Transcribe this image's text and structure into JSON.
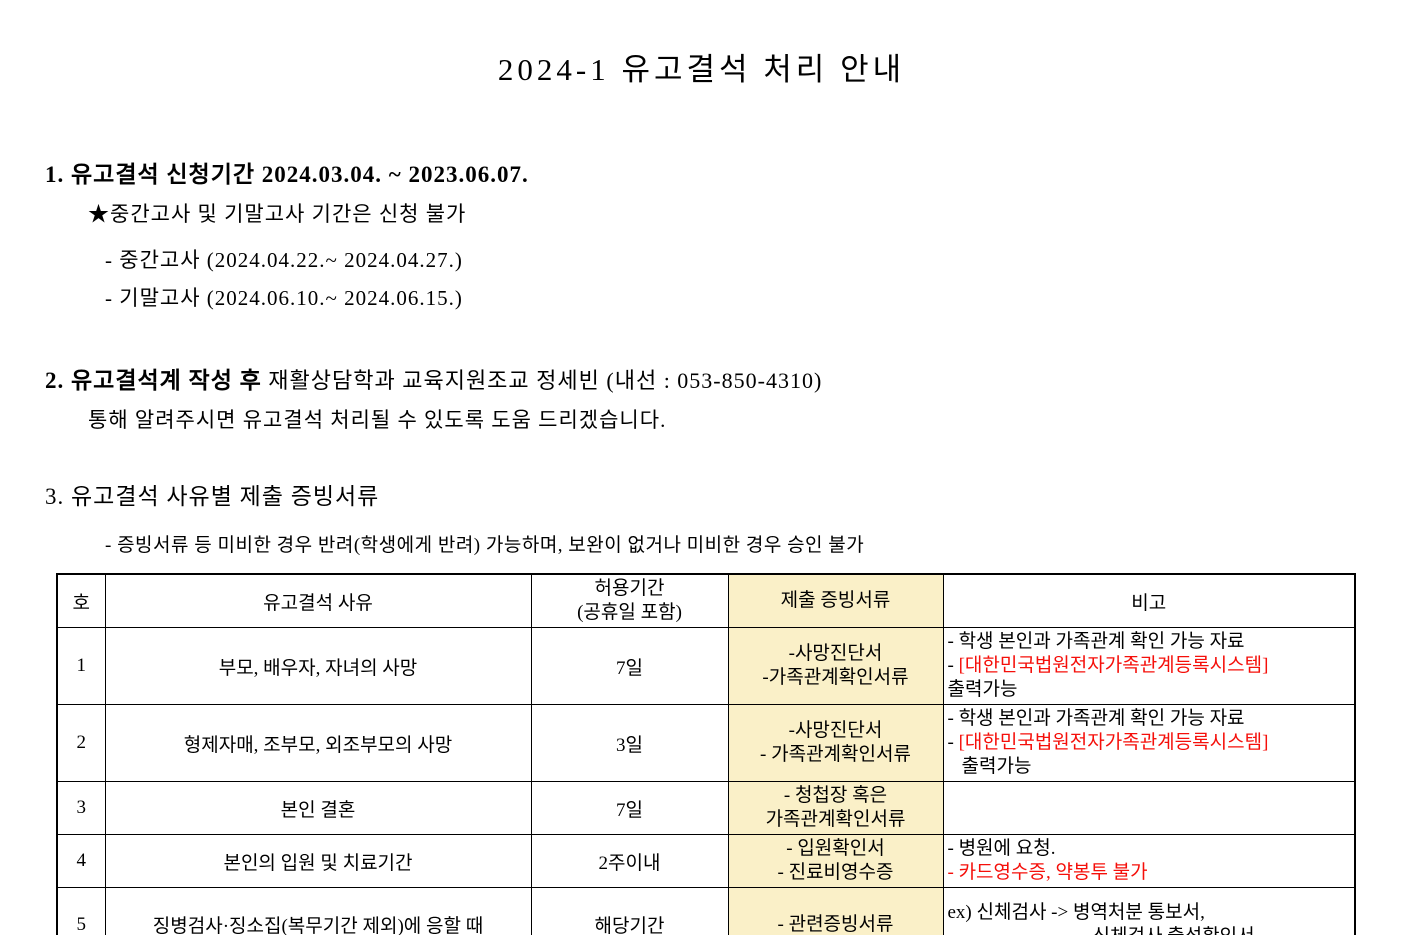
{
  "title": "2024-1 유고결석 처리 안내",
  "colors": {
    "highlight": "#faf0c8",
    "red": "#f50f0a",
    "text": "#000000"
  },
  "section1": {
    "heading": "1. 유고결석 신청기간 2024.03.04. ~ 2023.06.07.",
    "star_note": "★중간고사 및 기말고사 기간은 신청 불가",
    "midterm": "- 중간고사 (2024.04.22.~ 2024.04.27.)",
    "final": "- 기말고사 (2024.06.10.~ 2024.06.15.)"
  },
  "section2": {
    "heading_bold": "2. 유고결석계 작성 후",
    "heading_rest": " 재활상담학과 교육지원조교 정세빈 (내선 : 053-850-4310)",
    "body": "통해 알려주시면 유고결석 처리될 수 있도록 도움 드리겠습니다."
  },
  "section3": {
    "heading": "3. 유고결석 사유별 제출 증빙서류",
    "note": "- 증빙서류 등 미비한 경우 반려(학생에게 반려) 가능하며, 보완이 없거나 미비한 경우 승인 불가"
  },
  "table": {
    "headers": {
      "no": "호",
      "reason": "유고결석 사유",
      "period_line1": "허용기간",
      "period_line2": "(공휴일 포함)",
      "documents": "제출 증빙서류",
      "remarks": "비고"
    },
    "rows": [
      {
        "no": "1",
        "reason": "부모, 배우자, 자녀의 사망",
        "period": "7일",
        "doc_line1": "-사망진단서",
        "doc_line2": "-가족관계확인서류",
        "remark_line1": "- 학생 본인과 가족관계 확인 가능 자료",
        "remark_dash": "- ",
        "remark_red": "[대한민국법원전자가족관계등록시스템]",
        "remark_line3": "출력가능"
      },
      {
        "no": "2",
        "reason": "형제자매, 조부모, 외조부모의 사망",
        "period": "3일",
        "doc_line1": "-사망진단서",
        "doc_line2": "- 가족관계확인서류",
        "remark_line1": "- 학생 본인과 가족관계 확인 가능 자료",
        "remark_dash": "- ",
        "remark_red": "[대한민국법원전자가족관계등록시스템]",
        "remark_line3": "출력가능"
      },
      {
        "no": "3",
        "reason": "본인 결혼",
        "period": "7일",
        "doc_line1": "- 청첩장 혹은",
        "doc_line2": "가족관계확인서류"
      },
      {
        "no": "4",
        "reason": "본인의 입원 및 치료기간",
        "period": "2주이내",
        "doc_line1": "- 입원확인서",
        "doc_line2": "- 진료비영수증",
        "remark_line1": "- 병원에 요청.",
        "remark_red_full": "- 카드영수증, 약봉투 불가"
      },
      {
        "no": "5",
        "reason": "징병검사·징소집(복무기간 제외)에 응할 때",
        "period": "해당기간",
        "doc_line1": "- 관련증빙서류",
        "remark_line1": "ex) 신체검사 -> 병역처분 통보서,",
        "remark_line2": "신체검사 출석확인서"
      }
    ]
  }
}
